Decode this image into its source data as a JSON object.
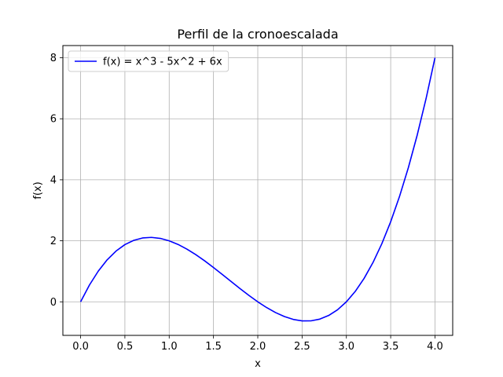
{
  "chart_data": {
    "type": "line",
    "title": "Perfil de la cronoescalada",
    "xlabel": "x",
    "ylabel": "f(x)",
    "xlim": [
      -0.2,
      4.2
    ],
    "ylim": [
      -1.1,
      8.4
    ],
    "x_ticks": [
      0.0,
      0.5,
      1.0,
      1.5,
      2.0,
      2.5,
      3.0,
      3.5,
      4.0
    ],
    "x_tick_labels": [
      "0.0",
      "0.5",
      "1.0",
      "1.5",
      "2.0",
      "2.5",
      "3.0",
      "3.5",
      "4.0"
    ],
    "y_ticks": [
      0,
      2,
      4,
      6,
      8
    ],
    "y_tick_labels": [
      "0",
      "2",
      "4",
      "6",
      "8"
    ],
    "grid": true,
    "legend": "top-left",
    "series": [
      {
        "name": "f(x) = x^3 - 5x^2 + 6x",
        "color": "#0000ff",
        "x": [
          0.0,
          0.1,
          0.2,
          0.3,
          0.4,
          0.5,
          0.6,
          0.7,
          0.8,
          0.9,
          1.0,
          1.1,
          1.2,
          1.3,
          1.4,
          1.5,
          1.6,
          1.7,
          1.8,
          1.9,
          2.0,
          2.1,
          2.2,
          2.3,
          2.4,
          2.5,
          2.6,
          2.7,
          2.8,
          2.9,
          3.0,
          3.1,
          3.2,
          3.3,
          3.4,
          3.5,
          3.6,
          3.7,
          3.8,
          3.9,
          4.0
        ],
        "y": [
          0.0,
          0.551,
          1.008,
          1.377,
          1.664,
          1.875,
          2.016,
          2.093,
          2.112,
          2.079,
          2.0,
          1.881,
          1.728,
          1.547,
          1.344,
          1.125,
          0.896,
          0.663,
          0.432,
          0.209,
          0.0,
          -0.189,
          -0.352,
          -0.483,
          -0.576,
          -0.625,
          -0.624,
          -0.567,
          -0.448,
          -0.261,
          0.0,
          0.341,
          0.768,
          1.287,
          1.904,
          2.625,
          3.456,
          4.403,
          5.472,
          6.669,
          8.0
        ]
      }
    ]
  }
}
